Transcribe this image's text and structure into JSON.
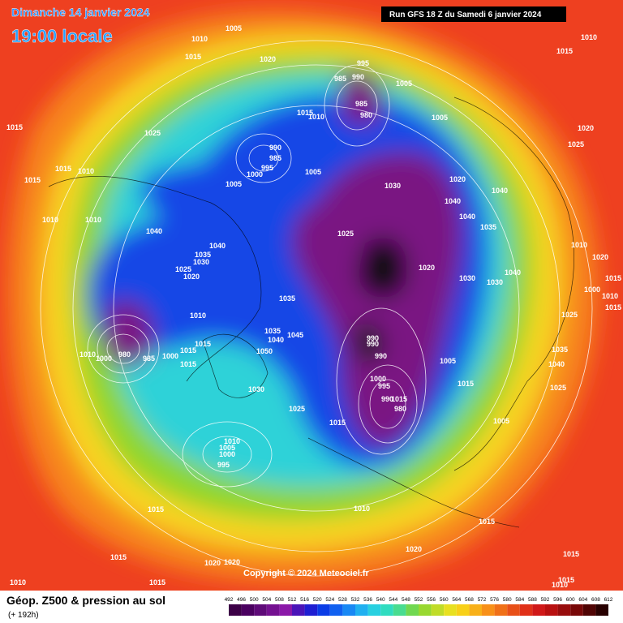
{
  "header": {
    "title": "Dimanche 14 janvier 2024",
    "time": "19:00 locale",
    "run": "Run GFS 18 Z du Samedi 6 janvier 2024"
  },
  "map": {
    "isobar_labels": [
      1005,
      1010,
      1015,
      1020,
      995,
      985,
      990,
      1005,
      985,
      980,
      1015,
      1010,
      1025,
      1005,
      1020,
      1025,
      1010,
      1015,
      1015,
      990,
      985,
      995,
      1000,
      1005,
      1005,
      1030,
      1020,
      1040,
      1040,
      1040,
      1035,
      1015,
      1010,
      1015,
      1010,
      1010,
      1040,
      1040,
      1035,
      1030,
      1025,
      1020,
      1025,
      1020,
      1030,
      1030,
      1040,
      1010,
      1020,
      1015,
      1000,
      1010,
      1015,
      1025,
      1010,
      1035,
      1035,
      1040,
      1045,
      1015,
      1050,
      990,
      990,
      990,
      1000,
      995,
      990,
      1015,
      980,
      1005,
      1015,
      1035,
      1040,
      1025,
      1010,
      1000,
      980,
      985,
      1000,
      1015,
      1015,
      1030,
      1025,
      1015,
      1005,
      1010,
      1005,
      1000,
      995,
      1015,
      1010,
      1015,
      1020,
      1015,
      1015,
      1010,
      1015,
      1020,
      1020,
      1015,
      1010
    ]
  },
  "copyright": "Copyright © 2024 Meteociel.fr",
  "legend": {
    "title": "Géop. Z500 & pression au sol",
    "subtitle": "(+ 192h)",
    "scale": [
      492,
      496,
      500,
      504,
      508,
      512,
      516,
      520,
      524,
      528,
      532,
      536,
      540,
      544,
      548,
      552,
      556,
      560,
      564,
      568,
      572,
      576,
      580,
      584,
      588,
      592,
      596,
      600,
      604,
      608,
      612
    ]
  }
}
